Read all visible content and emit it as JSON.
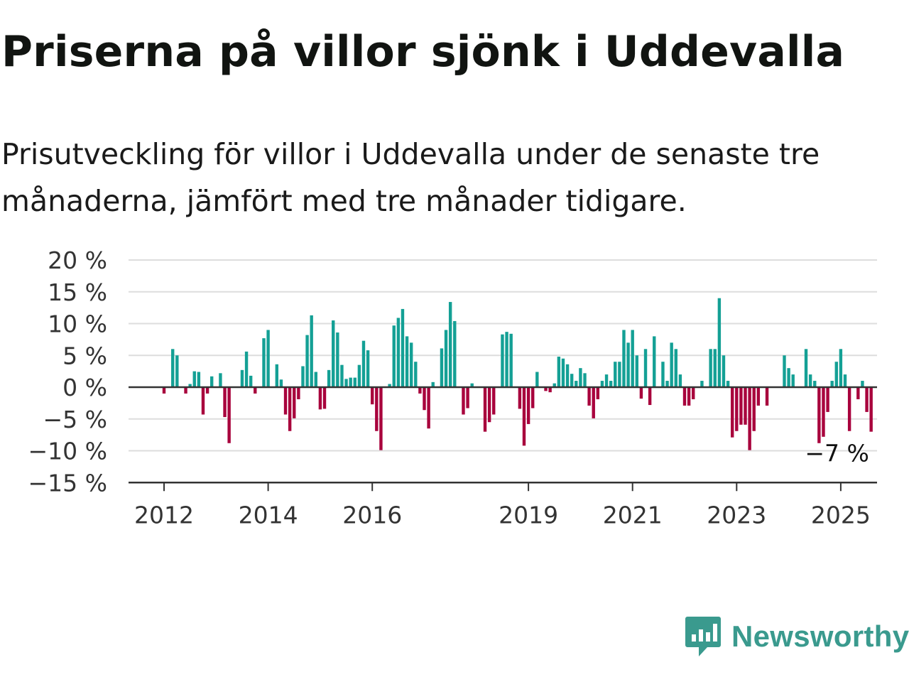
{
  "header": {
    "title": "Priserna på villor sjönk i Uddevalla",
    "subtitle": "Prisutveckling för villor i Uddevalla under de senaste tre månaderna, jämfört med tre månader tidigare."
  },
  "brand": {
    "name": "Newsworthy",
    "icon": "newsworthy-logo-icon",
    "color": "#3a9a8e"
  },
  "chart_data": {
    "type": "bar",
    "title": "",
    "xlabel": "",
    "ylabel": "",
    "ylim": [
      -15,
      20
    ],
    "yticks": [
      20,
      15,
      10,
      5,
      0,
      -5,
      -10,
      -15
    ],
    "ytick_labels": [
      "20 %",
      "15 %",
      "10 %",
      "5 %",
      "0 %",
      "−5 %",
      "−10 %",
      "−15 %"
    ],
    "xticks": [
      "2012",
      "2014",
      "2016",
      "2019",
      "2021",
      "2023",
      "2025"
    ],
    "x_start": "2012-01",
    "x_end": "2025-01",
    "grid": true,
    "colors": {
      "positive": "#14a095",
      "negative": "#a8003c",
      "grid": "#dddddd",
      "axis": "#333333"
    },
    "annotation": {
      "label": "−7 %",
      "month": "2025-01",
      "value": -7
    },
    "series": [
      {
        "values": [
          -1,
          0,
          6,
          5,
          0,
          -1,
          0.5,
          2.5,
          2.4,
          -4.3,
          -1,
          1.7,
          0,
          2.2,
          -4.7,
          -8.8,
          0,
          0,
          2.7,
          5.6,
          1.8,
          -1,
          0,
          7.7,
          9,
          0,
          3.6,
          1.2,
          -4.3,
          -6.9,
          -4.9,
          -1.9,
          3.3,
          8.2,
          11.3,
          2.4,
          -3.5,
          -3.4,
          2.7,
          10.5,
          8.6,
          3.5,
          1.3,
          1.5,
          1.5,
          3.5,
          7.3,
          5.8,
          -2.7,
          -6.9,
          -9.9,
          0,
          0.5,
          9.7,
          10.9,
          12.3,
          8,
          7,
          4,
          -1,
          -3.6,
          -6.5,
          0.8,
          0,
          6.1,
          9,
          13.4,
          10.4,
          0,
          -4.3,
          -3.3,
          0.6,
          0,
          0,
          -7,
          -5.5,
          -4.3,
          0,
          8.3,
          8.7,
          8.4,
          0,
          -3.4,
          -9.2,
          -5.8,
          -3.3,
          2.4,
          0,
          -0.6,
          -0.8,
          0.6,
          4.8,
          4.5,
          3.6,
          2.1,
          1,
          3,
          2.2,
          -2.9,
          -4.9,
          -1.9,
          1,
          2,
          1,
          4,
          4,
          9,
          7,
          9,
          5,
          -1.8,
          6,
          -2.8,
          8,
          0,
          4,
          1,
          7,
          6,
          2,
          -2.9,
          -2.9,
          -1.9,
          0,
          1,
          0,
          6,
          6,
          14,
          5,
          1,
          -7.9,
          -6.9,
          -5.9,
          -5.9,
          -9.9,
          -6.9,
          -2.9,
          0,
          -2.9,
          0,
          0,
          0,
          5,
          3,
          2,
          0,
          0,
          6,
          2,
          1,
          -8.8,
          -7.8,
          -3.9,
          1,
          4,
          6,
          2,
          -6.9,
          0,
          -1.9,
          1,
          -3.9,
          -7
        ]
      }
    ]
  }
}
